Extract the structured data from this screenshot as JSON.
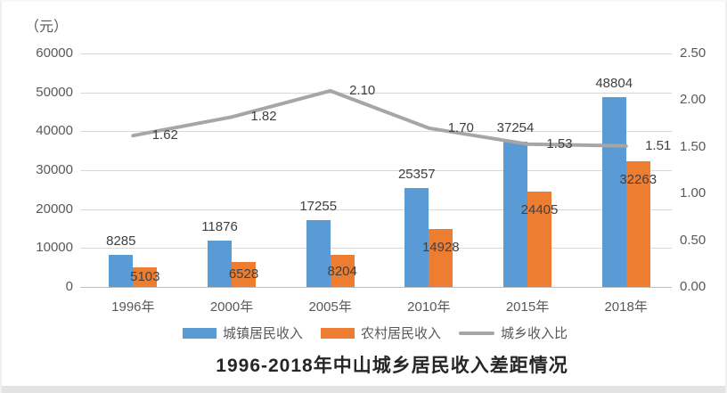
{
  "frame": {
    "unit_label": "（元）",
    "title": "1996-2018年中山城乡居民收入差距情况"
  },
  "colors": {
    "bar_urban": "#5B9BD5",
    "bar_rural": "#ED7D31",
    "ratio_line": "#A6A6A6",
    "gridline": "#D9D9D9",
    "axis_line": "#BFBFBF",
    "axis_text": "#595959",
    "value_text": "#404040",
    "title_text": "#262626"
  },
  "chart_data": {
    "type": "bar",
    "title": "1996-2018年中山城乡居民收入差距情况",
    "unit": "元",
    "categories": [
      "1996年",
      "2000年",
      "2005年",
      "2010年",
      "2015年",
      "2018年"
    ],
    "series": [
      {
        "name": "城镇居民收入",
        "type": "bar",
        "axis": "left",
        "color": "#5B9BD5",
        "values": [
          8285,
          11876,
          17255,
          25357,
          37254,
          48804
        ],
        "labels": [
          "8285",
          "11876",
          "17255",
          "25357",
          "37254",
          "48804"
        ]
      },
      {
        "name": "农村居民收入",
        "type": "bar",
        "axis": "left",
        "color": "#ED7D31",
        "values": [
          5103,
          6528,
          8204,
          14928,
          24405,
          32263
        ],
        "labels": [
          "5103",
          "6528",
          "8204",
          "14928",
          "24405",
          "32263"
        ]
      },
      {
        "name": "城乡收入比",
        "type": "line",
        "axis": "right",
        "color": "#A6A6A6",
        "values": [
          1.62,
          1.82,
          2.1,
          1.7,
          1.53,
          1.51
        ],
        "labels": [
          "1.62",
          "1.82",
          "2.10",
          "1.70",
          "1.53",
          "1.51"
        ]
      }
    ],
    "left_axis": {
      "title": "（元）",
      "min": 0,
      "max": 60000,
      "tick_interval": 10000,
      "ticks": [
        "60000",
        "50000",
        "40000",
        "30000",
        "20000",
        "10000",
        "0"
      ]
    },
    "right_axis": {
      "min": 0,
      "max": 2.5,
      "tick_interval": 0.5,
      "ticks": [
        "2.50",
        "2.00",
        "1.50",
        "1.00",
        "0.50",
        "0.00"
      ]
    },
    "grid": "horizontal-only",
    "legend_position": "bottom"
  }
}
